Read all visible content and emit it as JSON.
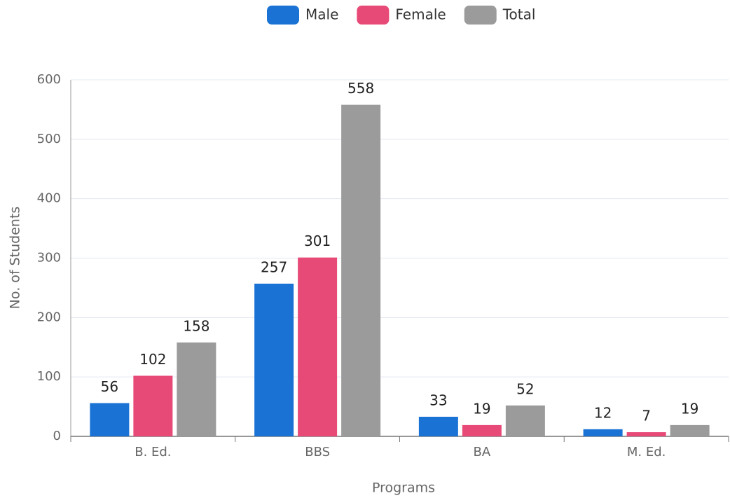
{
  "chart_data": {
    "type": "bar",
    "categories": [
      "B. Ed.",
      "BBS",
      "BA",
      "M. Ed."
    ],
    "series": [
      {
        "name": "Male",
        "color": "#1a73d4",
        "values": [
          56,
          257,
          33,
          12
        ]
      },
      {
        "name": "Female",
        "color": "#e84a78",
        "values": [
          102,
          301,
          19,
          7
        ]
      },
      {
        "name": "Total",
        "color": "#9b9b9b",
        "values": [
          158,
          558,
          52,
          19
        ]
      }
    ],
    "xlabel": "Programs",
    "ylabel": "No. of Students",
    "ylim": [
      0,
      600
    ],
    "yticks": [
      0,
      100,
      200,
      300,
      400,
      500,
      600
    ],
    "grid": true,
    "legend": "top"
  }
}
